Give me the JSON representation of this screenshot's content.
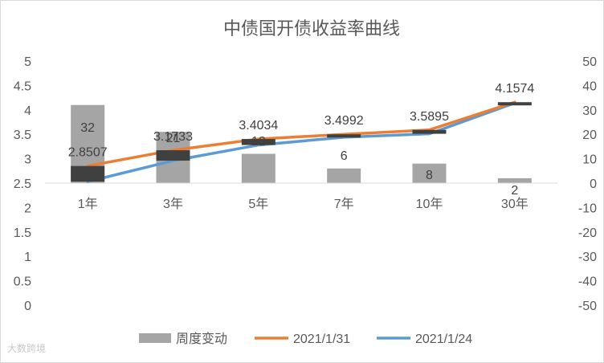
{
  "chart_data": {
    "type": "bar+line",
    "title": "中债国开债收益率曲线",
    "categories": [
      "1年",
      "3年",
      "5年",
      "7年",
      "10年",
      "30年"
    ],
    "y_left": {
      "min": 0,
      "max": 5,
      "step": 0.5,
      "ticks": [
        "0",
        "0.5",
        "1",
        "1.5",
        "2",
        "2.5",
        "3",
        "3.5",
        "4",
        "4.5",
        "5"
      ]
    },
    "y_right": {
      "min": -50,
      "max": 50,
      "step": 10,
      "ticks": [
        "-50",
        "-40",
        "-30",
        "-20",
        "-10",
        "0",
        "10",
        "20",
        "30",
        "40",
        "50"
      ]
    },
    "series": [
      {
        "name": "周度变动",
        "kind": "bar",
        "axis": "right",
        "color": "#a5a5a5",
        "values": [
          32,
          21,
          12,
          6,
          8,
          2
        ],
        "labels": [
          "32",
          "21",
          "12",
          "6",
          "8",
          "2"
        ]
      },
      {
        "name": "2021/1/31",
        "kind": "line",
        "axis": "left",
        "color": "#ed7d31",
        "values": [
          2.8507,
          3.1733,
          3.4034,
          3.4992,
          3.5895,
          4.1574
        ],
        "labels": [
          "2.8507",
          "3.1733",
          "3.4034",
          "3.4992",
          "3.5895",
          "4.1574"
        ]
      },
      {
        "name": "2021/1/24",
        "kind": "line",
        "axis": "left",
        "color": "#5b9bd5",
        "values": [
          2.53,
          2.96,
          3.28,
          3.44,
          3.51,
          4.14
        ]
      }
    ],
    "change_boxes": {
      "color": "#404040"
    },
    "legend_position": "bottom",
    "grid": false
  },
  "watermark": "大数跨境"
}
